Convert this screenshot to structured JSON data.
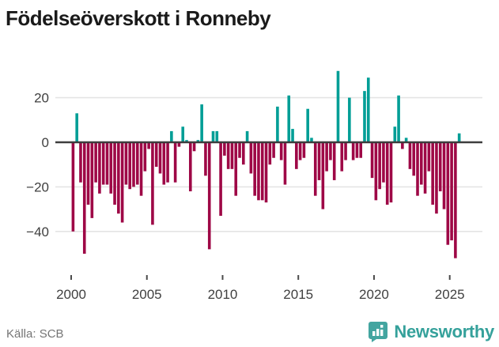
{
  "header": {
    "title": "Födelseöverskott i Ronneby"
  },
  "footer": {
    "source_label": "Källa: SCB",
    "brand_name": "Newsworthy",
    "brand_color": "#35a19b",
    "brand_icon": "newsworthy-bubble-chart-icon"
  },
  "chart_data": {
    "type": "bar",
    "title": "Födelseöverskott i Ronneby",
    "xlabel": "",
    "ylabel": "",
    "x_tick_labels": [
      "2000",
      "2005",
      "2010",
      "2015",
      "2020",
      "2025"
    ],
    "x_tick_years": [
      2000,
      2005,
      2010,
      2015,
      2020,
      2025
    ],
    "y_tick_labels": [
      "20",
      "0",
      "−20",
      "−40"
    ],
    "y_tick_values": [
      20,
      0,
      -20,
      -40
    ],
    "ylim": [
      -55,
      36
    ],
    "grid": "horizontal",
    "legend": "none",
    "positive_color": "#009e96",
    "negative_color": "#9e0846",
    "zero_line_color": "#3d3d3d",
    "grid_color": "#e4e4e4",
    "axis_text_color": "#3f3f3f",
    "quarters": [
      "2000 Q1",
      "2000 Q2",
      "2000 Q3",
      "2000 Q4",
      "2001 Q1",
      "2001 Q2",
      "2001 Q3",
      "2001 Q4",
      "2002 Q1",
      "2002 Q2",
      "2002 Q3",
      "2002 Q4",
      "2003 Q1",
      "2003 Q2",
      "2003 Q3",
      "2003 Q4",
      "2004 Q1",
      "2004 Q2",
      "2004 Q3",
      "2004 Q4",
      "2005 Q1",
      "2005 Q2",
      "2005 Q3",
      "2005 Q4",
      "2006 Q1",
      "2006 Q2",
      "2006 Q3",
      "2006 Q4",
      "2007 Q1",
      "2007 Q2",
      "2007 Q3",
      "2007 Q4",
      "2008 Q1",
      "2008 Q2",
      "2008 Q3",
      "2008 Q4",
      "2009 Q1",
      "2009 Q2",
      "2009 Q3",
      "2009 Q4",
      "2010 Q1",
      "2010 Q2",
      "2010 Q3",
      "2010 Q4",
      "2011 Q1",
      "2011 Q2",
      "2011 Q3",
      "2011 Q4",
      "2012 Q1",
      "2012 Q2",
      "2012 Q3",
      "2012 Q4",
      "2013 Q1",
      "2013 Q2",
      "2013 Q3",
      "2013 Q4",
      "2014 Q1",
      "2014 Q2",
      "2014 Q3",
      "2014 Q4",
      "2015 Q1",
      "2015 Q2",
      "2015 Q3",
      "2015 Q4",
      "2016 Q1",
      "2016 Q2",
      "2016 Q3",
      "2016 Q4",
      "2017 Q1",
      "2017 Q2",
      "2017 Q3",
      "2017 Q4",
      "2018 Q1",
      "2018 Q2",
      "2018 Q3",
      "2018 Q4",
      "2019 Q1",
      "2019 Q2",
      "2019 Q3",
      "2019 Q4",
      "2020 Q1",
      "2020 Q2",
      "2020 Q3",
      "2020 Q4",
      "2021 Q1",
      "2021 Q2",
      "2021 Q3",
      "2021 Q4",
      "2022 Q1",
      "2022 Q2",
      "2022 Q3",
      "2022 Q4",
      "2023 Q1",
      "2023 Q2",
      "2023 Q3",
      "2023 Q4",
      "2024 Q1",
      "2024 Q2",
      "2024 Q3",
      "2024 Q4",
      "2025 Q1",
      "2025 Q2",
      "2025 Q3"
    ],
    "values": [
      -40,
      13,
      -18,
      -50,
      -28,
      -34,
      -18,
      -23,
      -19,
      -19,
      -23,
      -28,
      -32,
      -36,
      -19,
      -21,
      -20,
      -19,
      -24,
      -13,
      -3,
      -37,
      -11,
      -14,
      -19,
      -18,
      5,
      -18,
      -2,
      7,
      1,
      -22,
      -4,
      1,
      17,
      -15,
      -48,
      5,
      5,
      -33,
      -6,
      -12,
      -12,
      -24,
      -7,
      -10,
      5,
      -14,
      -24,
      -26,
      -26,
      -27,
      -10,
      -7,
      16,
      -8,
      -19,
      21,
      6,
      -12,
      -8,
      -7,
      15,
      2,
      -24,
      -17,
      -30,
      -13,
      -8,
      -17,
      32,
      -13,
      -8,
      20,
      -8,
      -7,
      -7,
      23,
      29,
      -16,
      -26,
      -21,
      -18,
      -28,
      -27,
      7,
      21,
      -3,
      2,
      -12,
      -15,
      -24,
      -19,
      -23,
      -13,
      -28,
      -32,
      -22,
      -30,
      -46,
      -44,
      -52,
      4
    ]
  }
}
